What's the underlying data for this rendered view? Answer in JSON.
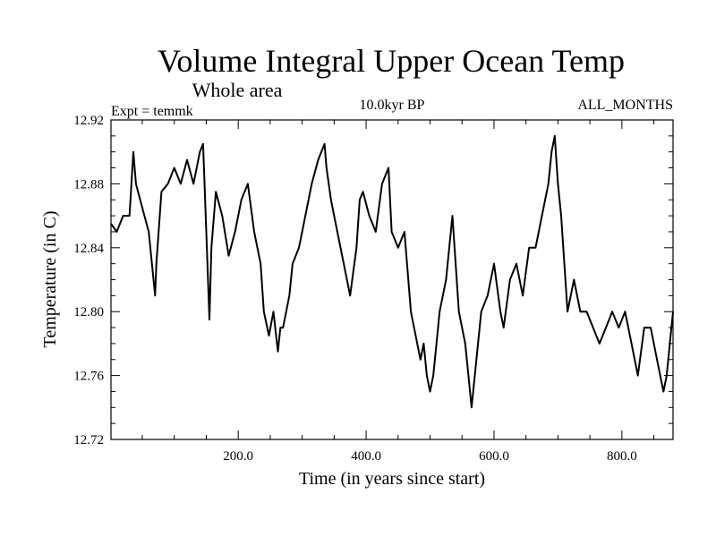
{
  "chart_data": {
    "type": "line",
    "title": "Volume Integral Upper Ocean Temp",
    "subtitle": "Whole area",
    "experiment_label": "Expt = temmk",
    "period_label": "10.0kyr BP",
    "months_label": "ALL_MONTHS",
    "xlabel": "Time (in years since start)",
    "ylabel": "Temperature (in C)",
    "xlim": [
      1,
      880
    ],
    "ylim": [
      12.72,
      12.92
    ],
    "x_ticks": [
      200,
      400,
      600,
      800
    ],
    "x_tick_labels": [
      "200.0",
      "400.0",
      "600.0",
      "800.0"
    ],
    "y_ticks": [
      12.72,
      12.76,
      12.8,
      12.84,
      12.88,
      12.92
    ],
    "y_tick_labels": [
      "12.72",
      "12.76",
      "12.80",
      "12.84",
      "12.88",
      "12.92"
    ],
    "grid": false,
    "series": [
      {
        "name": "Volume integral upper ocean temperature",
        "color": "#000000",
        "x": [
          1,
          10,
          20,
          30,
          36,
          40,
          50,
          60,
          70,
          72,
          80,
          90,
          100,
          110,
          120,
          130,
          140,
          145,
          150,
          155,
          158,
          165,
          175,
          185,
          195,
          205,
          215,
          225,
          235,
          240,
          248,
          255,
          262,
          266,
          270,
          275,
          280,
          285,
          295,
          305,
          315,
          325,
          335,
          338,
          345,
          355,
          365,
          375,
          385,
          390,
          395,
          405,
          415,
          425,
          435,
          440,
          450,
          460,
          470,
          480,
          485,
          490,
          495,
          500,
          505,
          510,
          515,
          525,
          535,
          545,
          555,
          560,
          565,
          570,
          575,
          580,
          590,
          600,
          610,
          615,
          625,
          635,
          645,
          655,
          665,
          675,
          685,
          690,
          695,
          700,
          705,
          715,
          725,
          735,
          745,
          755,
          765,
          775,
          785,
          795,
          805,
          815,
          825,
          835,
          845,
          855,
          865,
          870,
          875,
          880
        ],
        "values": [
          12.855,
          12.85,
          12.86,
          12.86,
          12.9,
          12.88,
          12.865,
          12.85,
          12.81,
          12.83,
          12.875,
          12.88,
          12.89,
          12.88,
          12.895,
          12.88,
          12.9,
          12.905,
          12.85,
          12.795,
          12.84,
          12.875,
          12.86,
          12.835,
          12.85,
          12.87,
          12.88,
          12.85,
          12.83,
          12.8,
          12.785,
          12.8,
          12.775,
          12.79,
          12.79,
          12.8,
          12.81,
          12.83,
          12.84,
          12.86,
          12.88,
          12.895,
          12.905,
          12.89,
          12.87,
          12.85,
          12.83,
          12.81,
          12.84,
          12.87,
          12.875,
          12.86,
          12.85,
          12.88,
          12.89,
          12.85,
          12.84,
          12.85,
          12.8,
          12.78,
          12.77,
          12.78,
          12.76,
          12.75,
          12.76,
          12.78,
          12.8,
          12.82,
          12.86,
          12.8,
          12.78,
          12.76,
          12.74,
          12.76,
          12.78,
          12.8,
          12.81,
          12.83,
          12.8,
          12.79,
          12.82,
          12.83,
          12.81,
          12.84,
          12.84,
          12.86,
          12.88,
          12.9,
          12.91,
          12.88,
          12.86,
          12.8,
          12.82,
          12.8,
          12.8,
          12.79,
          12.78,
          12.79,
          12.8,
          12.79,
          12.8,
          12.78,
          12.76,
          12.79,
          12.79,
          12.77,
          12.75,
          12.76,
          12.78,
          12.8
        ]
      }
    ]
  }
}
